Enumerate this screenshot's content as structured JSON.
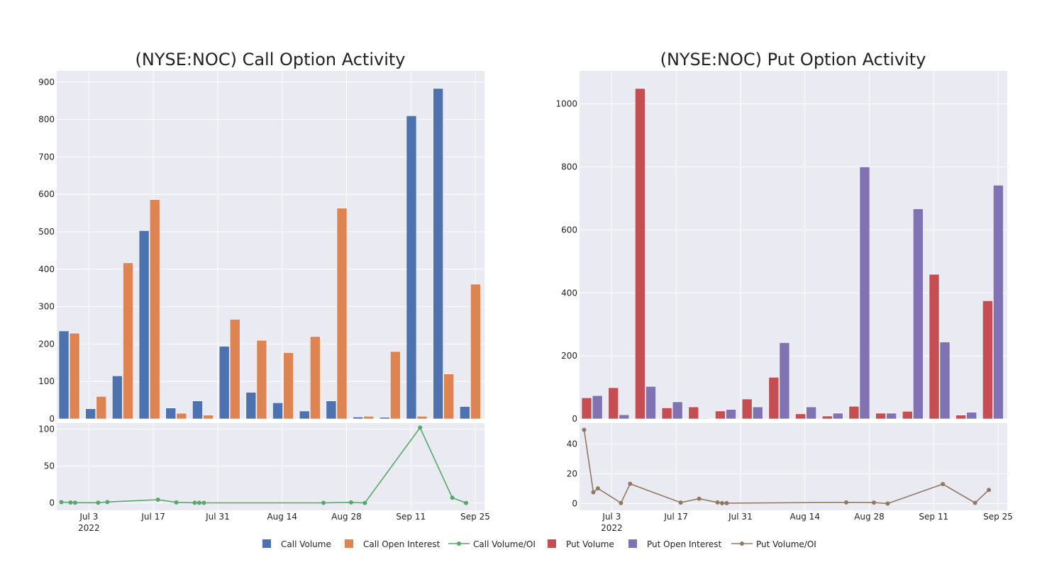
{
  "chart_data": [
    {
      "type": "bar",
      "title": "(NYSE:NOC) Call Option Activity",
      "ylim": [
        0,
        930
      ],
      "yticks": [
        0,
        100,
        200,
        300,
        400,
        500,
        600,
        700,
        800,
        900
      ],
      "series": [
        {
          "name": "Call Volume",
          "color": "#4c72b0",
          "values": [
            235,
            27,
            115,
            503,
            29,
            48,
            194,
            71,
            43,
            21,
            48,
            5,
            4,
            810,
            883,
            33
          ]
        },
        {
          "name": "Call Open Interest",
          "color": "#dd8452",
          "values": [
            229,
            60,
            417,
            586,
            15,
            10,
            266,
            210,
            177,
            220,
            563,
            7,
            180,
            7,
            120,
            360
          ]
        }
      ]
    },
    {
      "type": "bar",
      "title": "(NYSE:NOC) Put Option Activity",
      "ylim": [
        0,
        1105
      ],
      "yticks": [
        0,
        200,
        400,
        600,
        800,
        1000
      ],
      "series": [
        {
          "name": "Put Volume",
          "color": "#c44e52",
          "values": [
            67,
            99,
            1049,
            35,
            38,
            25,
            63,
            132,
            16,
            9,
            40,
            18,
            24,
            459,
            12,
            375
          ]
        },
        {
          "name": "Put Open Interest",
          "color": "#8172b3",
          "values": [
            74,
            13,
            103,
            54,
            2,
            30,
            38,
            242,
            38,
            18,
            800,
            18,
            667,
            244,
            21,
            742
          ]
        }
      ]
    },
    {
      "type": "line",
      "series_name": "Call Volume/OI",
      "color": "#55a868",
      "ylim": [
        -10,
        108
      ],
      "yticks": [
        0,
        50,
        100
      ],
      "xlim": [
        "2022-06-26",
        "2022-09-27"
      ],
      "xticks": [
        {
          "date": "2022-07-03",
          "label": "Jul 3",
          "sublabel": "2022"
        },
        {
          "date": "2022-07-17",
          "label": "Jul 17"
        },
        {
          "date": "2022-07-31",
          "label": "Jul 31"
        },
        {
          "date": "2022-08-14",
          "label": "Aug 14"
        },
        {
          "date": "2022-08-28",
          "label": "Aug 28"
        },
        {
          "date": "2022-09-11",
          "label": "Sep 11"
        },
        {
          "date": "2022-09-25",
          "label": "Sep 25"
        }
      ],
      "points": [
        {
          "x": "2022-06-27",
          "y": 1.0
        },
        {
          "x": "2022-06-29",
          "y": 0.5
        },
        {
          "x": "2022-06-30",
          "y": 0.3
        },
        {
          "x": "2022-07-05",
          "y": 0.3
        },
        {
          "x": "2022-07-07",
          "y": 1.2
        },
        {
          "x": "2022-07-18",
          "y": 4.4
        },
        {
          "x": "2022-07-22",
          "y": 0.7
        },
        {
          "x": "2022-07-26",
          "y": 0.2
        },
        {
          "x": "2022-07-27",
          "y": 0.2
        },
        {
          "x": "2022-07-28",
          "y": 0.1
        },
        {
          "x": "2022-08-23",
          "y": 0.1
        },
        {
          "x": "2022-08-29",
          "y": 0.7
        },
        {
          "x": "2022-09-01",
          "y": 0.0
        },
        {
          "x": "2022-09-13",
          "y": 102.0
        },
        {
          "x": "2022-09-20",
          "y": 7.0
        },
        {
          "x": "2022-09-23",
          "y": 0.0
        }
      ]
    },
    {
      "type": "line",
      "series_name": "Put Volume/OI",
      "color": "#937860",
      "ylim": [
        -4.5,
        54
      ],
      "yticks": [
        0,
        20,
        40
      ],
      "xlim": [
        "2022-06-26",
        "2022-09-27"
      ],
      "xticks": [
        {
          "date": "2022-07-03",
          "label": "Jul 3",
          "sublabel": "2022"
        },
        {
          "date": "2022-07-17",
          "label": "Jul 17"
        },
        {
          "date": "2022-07-31",
          "label": "Jul 31"
        },
        {
          "date": "2022-08-14",
          "label": "Aug 14"
        },
        {
          "date": "2022-08-28",
          "label": "Aug 28"
        },
        {
          "date": "2022-09-11",
          "label": "Sep 11"
        },
        {
          "date": "2022-09-25",
          "label": "Sep 25"
        }
      ],
      "points": [
        {
          "x": "2022-06-27",
          "y": 49.5
        },
        {
          "x": "2022-06-29",
          "y": 7.6
        },
        {
          "x": "2022-06-30",
          "y": 10.2
        },
        {
          "x": "2022-07-05",
          "y": 0.4
        },
        {
          "x": "2022-07-07",
          "y": 13.3
        },
        {
          "x": "2022-07-18",
          "y": 0.7
        },
        {
          "x": "2022-07-22",
          "y": 3.3
        },
        {
          "x": "2022-07-26",
          "y": 0.8
        },
        {
          "x": "2022-07-27",
          "y": 0.3
        },
        {
          "x": "2022-07-28",
          "y": 0.3
        },
        {
          "x": "2022-08-23",
          "y": 0.8
        },
        {
          "x": "2022-08-29",
          "y": 0.7
        },
        {
          "x": "2022-09-01",
          "y": 0.0
        },
        {
          "x": "2022-09-13",
          "y": 13.1
        },
        {
          "x": "2022-09-20",
          "y": 0.5
        },
        {
          "x": "2022-09-23",
          "y": 9.2
        }
      ]
    }
  ],
  "legend": {
    "placement": "bottom-center",
    "entries": [
      {
        "label": "Call Volume",
        "color": "#4c72b0",
        "kind": "square"
      },
      {
        "label": "Call Open Interest",
        "color": "#dd8452",
        "kind": "square"
      },
      {
        "label": "Call Volume/OI",
        "color": "#55a868",
        "kind": "line"
      },
      {
        "label": "Put Volume",
        "color": "#c44e52",
        "kind": "square"
      },
      {
        "label": "Put Open Interest",
        "color": "#8172b3",
        "kind": "square"
      },
      {
        "label": "Put Volume/OI",
        "color": "#937860",
        "kind": "line"
      }
    ]
  }
}
